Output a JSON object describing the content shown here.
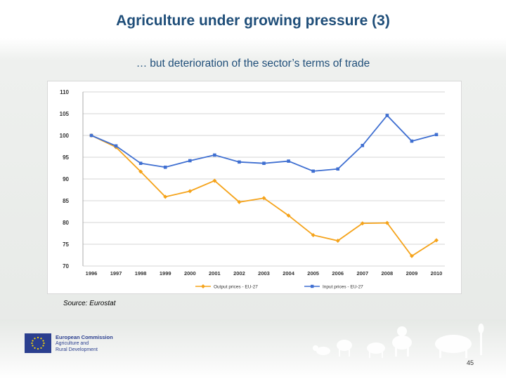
{
  "slide": {
    "title": "Agriculture under growing pressure (3)",
    "subtitle_ellipsis": "…",
    "subtitle_text": "but deterioration of the sector’s terms of trade",
    "source": "Source: Eurostat",
    "page_number": "45"
  },
  "logo": {
    "line1": "European Commission",
    "line2": "Agriculture and",
    "line3": "Rural Development"
  },
  "colors": {
    "title": "#1f4e79",
    "output_series": "#f5a31a",
    "input_series": "#3f6fd1"
  },
  "chart_data": {
    "type": "line",
    "title": "",
    "xlabel": "",
    "ylabel": "",
    "x": [
      "1996",
      "1997",
      "1998",
      "1999",
      "2000",
      "2001",
      "2002",
      "2003",
      "2004",
      "2005",
      "2006",
      "2007",
      "2008",
      "2009",
      "2010"
    ],
    "ylim": [
      70,
      110
    ],
    "yticks": [
      70,
      75,
      80,
      85,
      90,
      95,
      100,
      105,
      110
    ],
    "grid": true,
    "legend_position": "bottom",
    "series": [
      {
        "name": "Output prices - EU-27",
        "color": "#f5a31a",
        "marker": "diamond",
        "values": [
          100,
          97.3,
          91.7,
          85.9,
          87.2,
          89.6,
          84.7,
          85.6,
          81.6,
          77.1,
          75.8,
          79.8,
          79.9,
          72.3,
          75.9
        ]
      },
      {
        "name": "Input prices - EU-27",
        "color": "#3f6fd1",
        "marker": "square",
        "values": [
          100,
          97.6,
          93.6,
          92.7,
          94.2,
          95.5,
          93.9,
          93.6,
          94.1,
          91.8,
          92.3,
          97.7,
          104.6,
          98.7,
          100.2
        ]
      }
    ]
  }
}
